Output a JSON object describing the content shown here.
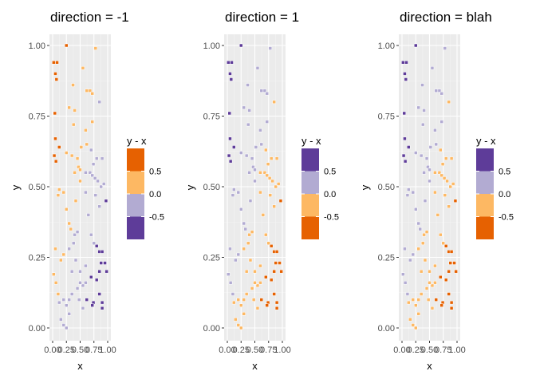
{
  "chart_data": [
    {
      "type": "scatter",
      "title": "direction = -1",
      "xlabel": "x",
      "ylabel": "y",
      "xlim": [
        0,
        1
      ],
      "ylim": [
        0,
        1
      ],
      "x_ticks": [
        "0.00",
        "0.25",
        "0.50",
        "0.75",
        "1.00"
      ],
      "y_ticks": [
        "0.00",
        "0.25",
        "0.50",
        "0.75",
        "1.00"
      ],
      "grid": true,
      "legend": {
        "title": "y - x",
        "placement": "right",
        "labels": [
          "0.5",
          "0.0",
          "-0.5"
        ],
        "colors_top_to_bottom": [
          "#e66101",
          "#fdb863",
          "#b2abd2",
          "#5e3c99"
        ]
      }
    },
    {
      "type": "scatter",
      "title": "direction = 1",
      "xlabel": "x",
      "ylabel": "y",
      "xlim": [
        0,
        1
      ],
      "ylim": [
        0,
        1
      ],
      "x_ticks": [
        "0.00",
        "0.25",
        "0.50",
        "0.75",
        "1.00"
      ],
      "y_ticks": [
        "0.00",
        "0.25",
        "0.50",
        "0.75",
        "1.00"
      ],
      "grid": true,
      "legend": {
        "title": "y - x",
        "placement": "right",
        "labels": [
          "0.5",
          "0.0",
          "-0.5"
        ],
        "colors_top_to_bottom": [
          "#5e3c99",
          "#b2abd2",
          "#fdb863",
          "#e66101"
        ]
      }
    },
    {
      "type": "scatter",
      "title": "direction = blah",
      "xlabel": "x",
      "ylabel": "y",
      "xlim": [
        0,
        1
      ],
      "ylim": [
        0,
        1
      ],
      "x_ticks": [
        "0.00",
        "0.25",
        "0.50",
        "0.75",
        "1.00"
      ],
      "y_ticks": [
        "0.00",
        "0.25",
        "0.50",
        "0.75",
        "1.00"
      ],
      "grid": true,
      "legend": {
        "title": "y - x",
        "placement": "right",
        "labels": [
          "0.5",
          "0.0",
          "-0.5"
        ],
        "colors_top_to_bottom": [
          "#5e3c99",
          "#b2abd2",
          "#fdb863",
          "#e66101"
        ]
      }
    }
  ],
  "points": [
    [
      0.02,
      0.94
    ],
    [
      0.08,
      0.94
    ],
    [
      0.05,
      0.9
    ],
    [
      0.07,
      0.88
    ],
    [
      0.25,
      1.0
    ],
    [
      0.78,
      0.99
    ],
    [
      0.04,
      0.76
    ],
    [
      0.37,
      0.86
    ],
    [
      0.55,
      0.92
    ],
    [
      0.62,
      0.84
    ],
    [
      0.68,
      0.84
    ],
    [
      0.72,
      0.83
    ],
    [
      0.85,
      0.8
    ],
    [
      0.4,
      0.77
    ],
    [
      0.3,
      0.78
    ],
    [
      0.38,
      0.72
    ],
    [
      0.6,
      0.7
    ],
    [
      0.72,
      0.73
    ],
    [
      0.05,
      0.67
    ],
    [
      0.12,
      0.64
    ],
    [
      0.45,
      0.6
    ],
    [
      0.52,
      0.64
    ],
    [
      0.62,
      0.65
    ],
    [
      0.7,
      0.63
    ],
    [
      0.8,
      0.6
    ],
    [
      0.9,
      0.6
    ],
    [
      0.03,
      0.61
    ],
    [
      0.06,
      0.59
    ],
    [
      0.25,
      0.62
    ],
    [
      0.35,
      0.61
    ],
    [
      0.47,
      0.57
    ],
    [
      0.5,
      0.56
    ],
    [
      0.6,
      0.55
    ],
    [
      0.68,
      0.55
    ],
    [
      0.72,
      0.54
    ],
    [
      0.74,
      0.58
    ],
    [
      0.77,
      0.53
    ],
    [
      0.82,
      0.52
    ],
    [
      0.88,
      0.5
    ],
    [
      0.93,
      0.51
    ],
    [
      0.97,
      0.45
    ],
    [
      0.6,
      0.48
    ],
    [
      0.78,
      0.47
    ],
    [
      0.85,
      0.43
    ],
    [
      0.42,
      0.45
    ],
    [
      0.25,
      0.42
    ],
    [
      0.5,
      0.52
    ],
    [
      0.12,
      0.49
    ],
    [
      0.2,
      0.48
    ],
    [
      0.1,
      0.47
    ],
    [
      0.3,
      0.37
    ],
    [
      0.33,
      0.35
    ],
    [
      0.4,
      0.33
    ],
    [
      0.45,
      0.34
    ],
    [
      0.38,
      0.3
    ],
    [
      0.3,
      0.28
    ],
    [
      0.7,
      0.33
    ],
    [
      0.75,
      0.3
    ],
    [
      0.8,
      0.29
    ],
    [
      0.85,
      0.27
    ],
    [
      0.9,
      0.27
    ],
    [
      0.95,
      0.23
    ],
    [
      0.98,
      0.2
    ],
    [
      0.88,
      0.23
    ],
    [
      0.85,
      0.2
    ],
    [
      0.8,
      0.17
    ],
    [
      0.7,
      0.18
    ],
    [
      0.6,
      0.16
    ],
    [
      0.55,
      0.15
    ],
    [
      0.5,
      0.16
    ],
    [
      0.2,
      0.26
    ],
    [
      0.15,
      0.24
    ],
    [
      0.05,
      0.28
    ],
    [
      0.02,
      0.19
    ],
    [
      0.06,
      0.16
    ],
    [
      0.1,
      0.12
    ],
    [
      0.12,
      0.09
    ],
    [
      0.2,
      0.1
    ],
    [
      0.25,
      0.08
    ],
    [
      0.3,
      0.1
    ],
    [
      0.35,
      0.12
    ],
    [
      0.48,
      0.1
    ],
    [
      0.55,
      0.07
    ],
    [
      0.62,
      0.1
    ],
    [
      0.74,
      0.09
    ],
    [
      0.85,
      0.12
    ],
    [
      0.9,
      0.09
    ],
    [
      0.72,
      0.08
    ],
    [
      0.5,
      0.2
    ],
    [
      0.42,
      0.24
    ],
    [
      0.3,
      0.05
    ],
    [
      0.15,
      0.03
    ],
    [
      0.2,
      0.01
    ],
    [
      0.25,
      0.0
    ],
    [
      0.35,
      0.2
    ],
    [
      0.9,
      0.07
    ],
    [
      0.45,
      0.14
    ],
    [
      0.6,
      0.22
    ],
    [
      0.4,
      0.55
    ],
    [
      0.65,
      0.4
    ]
  ]
}
